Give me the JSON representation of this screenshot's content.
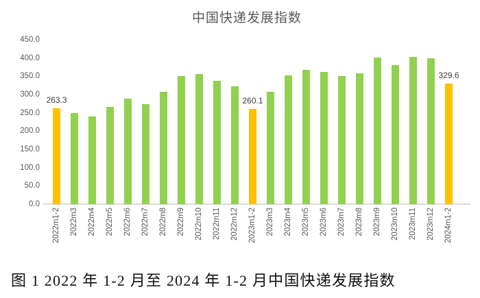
{
  "title": "中国快递发展指数",
  "caption": "图 1  2022 年 1-2 月至 2024 年 1-2 月中国快递发展指数",
  "colors": {
    "bar_green": "#92d050",
    "bar_orange": "#ffc000",
    "axis_line": "#d9d9d9",
    "tick_label": "#595959",
    "title_text": "#595959",
    "data_label": "#404040"
  },
  "chart_data": {
    "type": "bar",
    "title": "中国快递发展指数",
    "xlabel": "",
    "ylabel": "",
    "grid": false,
    "legend": "none",
    "ylim": [
      0,
      450
    ],
    "ytick_step": 50,
    "ytick_labels": [
      "0.0",
      "50.0",
      "100.0",
      "150.0",
      "200.0",
      "250.0",
      "300.0",
      "350.0",
      "400.0",
      "450.0"
    ],
    "categories": [
      "2022m1-2",
      "2022m3",
      "2022m4",
      "2022m5",
      "2022m6",
      "2022m7",
      "2022m8",
      "2022m9",
      "2022m10",
      "2022m11",
      "2022m12",
      "2023m1-2",
      "2023m3",
      "2023m4",
      "2023m5",
      "2023m6",
      "2023m7",
      "2023m8",
      "2023m9",
      "2023m10",
      "2023m11",
      "2023m12",
      "2024m1-2"
    ],
    "values": [
      263.3,
      250.0,
      240.0,
      266.0,
      288.0,
      273.0,
      307.0,
      350.0,
      356.0,
      337.0,
      323.0,
      260.1,
      307.0,
      353.0,
      368.0,
      362.0,
      350.0,
      358.0,
      402.0,
      381.0,
      403.0,
      399.0,
      329.6
    ],
    "bar_color": "#92d050",
    "highlight_color": "#ffc000",
    "highlighted_indices": [
      0,
      11,
      22
    ],
    "data_labels": [
      {
        "index": 0,
        "text": "263.3"
      },
      {
        "index": 11,
        "text": "260.1"
      },
      {
        "index": 22,
        "text": "329.6"
      }
    ]
  }
}
